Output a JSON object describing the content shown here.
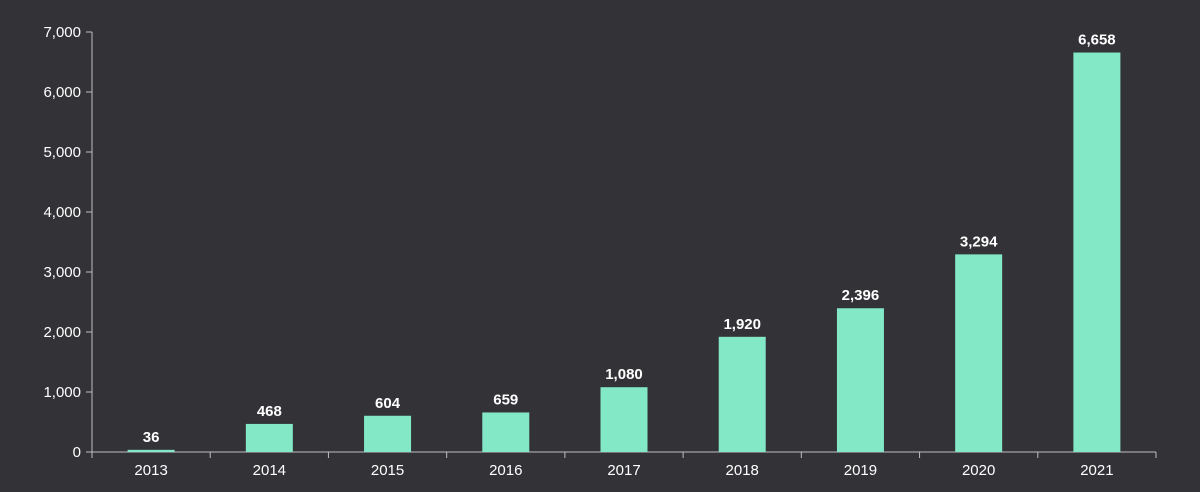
{
  "colors": {
    "background": "#333337",
    "bar": "#82e8c5",
    "axis": "#bfbfbf",
    "text": "#ffffff"
  },
  "chart_data": {
    "type": "bar",
    "title": "",
    "xlabel": "",
    "ylabel": "",
    "categories": [
      "2013",
      "2014",
      "2015",
      "2016",
      "2017",
      "2018",
      "2019",
      "2020",
      "2021"
    ],
    "values": [
      36,
      468,
      604,
      659,
      1080,
      1920,
      2396,
      3294,
      6658
    ],
    "data_labels": [
      "36",
      "468",
      "604",
      "659",
      "1,080",
      "1,920",
      "2,396",
      "3,294",
      "6,658"
    ],
    "ylim": [
      0,
      7000
    ],
    "y_ticks": [
      0,
      1000,
      2000,
      3000,
      4000,
      5000,
      6000,
      7000
    ],
    "y_tick_labels": [
      "0",
      "1,000",
      "2,000",
      "3,000",
      "4,000",
      "5,000",
      "6,000",
      "7,000"
    ],
    "grid": false,
    "legend": "none"
  }
}
